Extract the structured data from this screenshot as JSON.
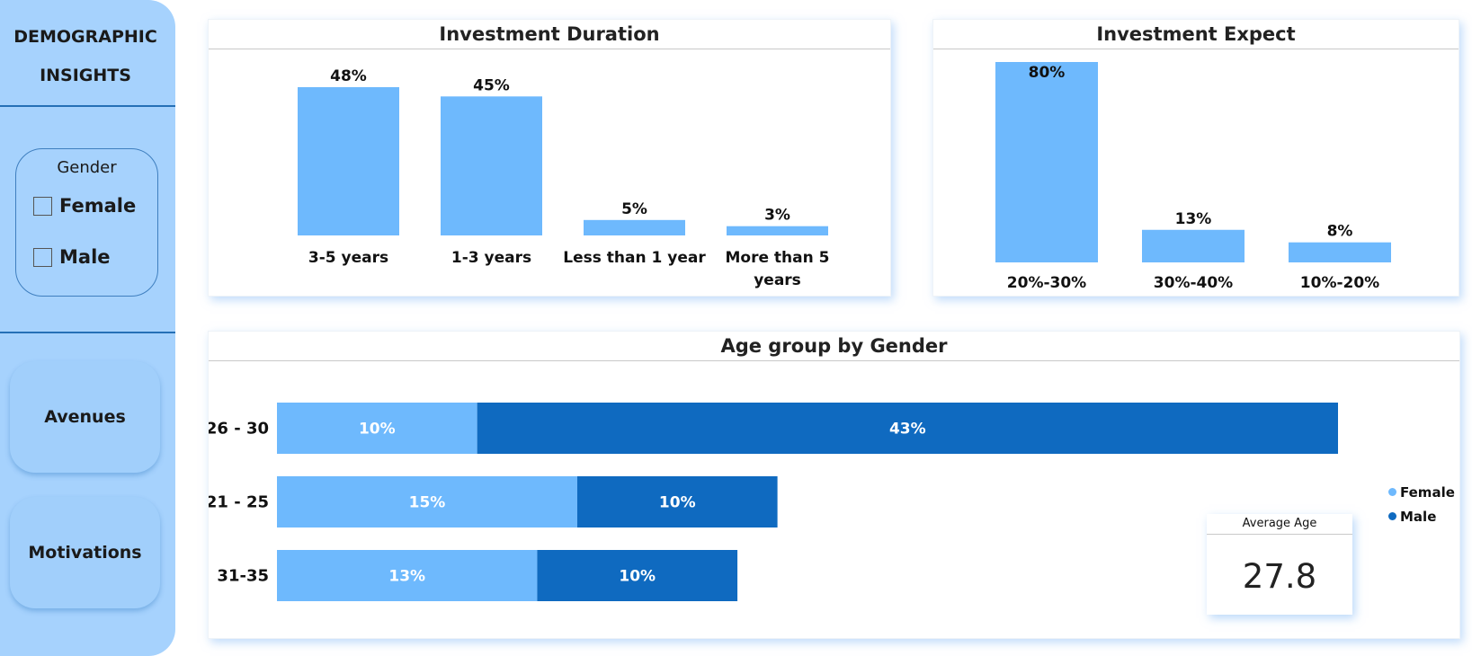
{
  "sidebar": {
    "title_line1": "DEMOGRAPHIC",
    "title_line2": "INSIGHTS",
    "slicer": {
      "title": "Gender",
      "options": [
        {
          "label": "Female",
          "checked": false
        },
        {
          "label": "Male",
          "checked": false
        }
      ]
    },
    "nav": [
      {
        "label": "Avenues"
      },
      {
        "label": "Motivations"
      }
    ]
  },
  "colors": {
    "bar": "#6eb9fd",
    "female": "#6eb9fd",
    "male": "#0f6ac0",
    "sidebar": "#a6d2fd"
  },
  "chart_data": [
    {
      "type": "bar",
      "title": "Investment Duration",
      "categories": [
        "3-5 years",
        "1-3 years",
        "Less than 1 year",
        "More than 5 years"
      ],
      "values": [
        48,
        45,
        5,
        3
      ],
      "labels": [
        "48%",
        "45%",
        "5%",
        "3%"
      ],
      "unit": "%"
    },
    {
      "type": "bar",
      "title": "Investment Expect",
      "categories": [
        "20%-30%",
        "30%-40%",
        "10%-20%"
      ],
      "values": [
        80,
        13,
        8
      ],
      "labels": [
        "80%",
        "13%",
        "8%"
      ],
      "unit": "%"
    },
    {
      "type": "bar",
      "orientation": "horizontal",
      "stacked": true,
      "title": "Age group by Gender",
      "categories": [
        "26 - 30",
        "21 - 25",
        "31-35"
      ],
      "series": [
        {
          "name": "Female",
          "values": [
            10,
            15,
            13
          ],
          "labels": [
            "10%",
            "15%",
            "13%"
          ]
        },
        {
          "name": "Male",
          "values": [
            43,
            10,
            10
          ],
          "labels": [
            "43%",
            "10%",
            "10%"
          ]
        }
      ],
      "legend": "right"
    }
  ],
  "kpi": {
    "title": "Average Age",
    "value": "27.8"
  }
}
